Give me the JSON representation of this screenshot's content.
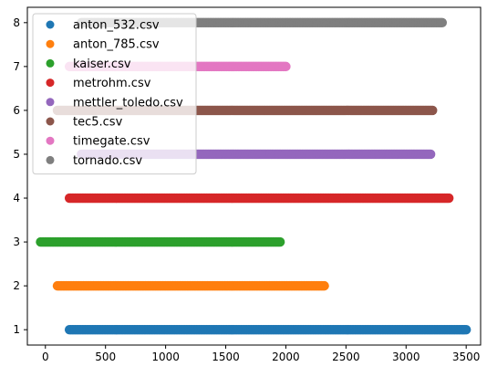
{
  "chart_data": {
    "type": "scatter",
    "title": "",
    "xlabel": "",
    "ylabel": "",
    "xlim": [
      -150,
      3620
    ],
    "ylim": [
      0.65,
      8.35
    ],
    "xticks": [
      0,
      500,
      1000,
      1500,
      2000,
      2500,
      3000,
      3500
    ],
    "yticks": [
      1,
      2,
      3,
      4,
      5,
      6,
      7,
      8
    ],
    "grid": false,
    "legend_position": "top-left",
    "series": [
      {
        "name": "anton_532.csv",
        "color": "#1f77b4",
        "y": 1,
        "x_range": [
          200,
          3510
        ]
      },
      {
        "name": "anton_785.csv",
        "color": "#ff7f0e",
        "y": 2,
        "x_range": [
          100,
          2320
        ]
      },
      {
        "name": "kaiser.csv",
        "color": "#2ca02c",
        "y": 3,
        "x_range": [
          -40,
          1960
        ]
      },
      {
        "name": "metrohm.csv",
        "color": "#d62728",
        "y": 4,
        "x_range": [
          200,
          3360
        ]
      },
      {
        "name": "mettler_toledo.csv",
        "color": "#9467bd",
        "y": 5,
        "x_range": [
          300,
          3210
        ]
      },
      {
        "name": "tec5.csv",
        "color": "#8c564b",
        "y": 6,
        "x_range": [
          100,
          3220
        ]
      },
      {
        "name": "timegate.csv",
        "color": "#e377c2",
        "y": 7,
        "x_range": [
          200,
          2010
        ]
      },
      {
        "name": "tornado.csv",
        "color": "#7f7f7f",
        "y": 8,
        "x_range": [
          300,
          3310
        ]
      }
    ]
  }
}
